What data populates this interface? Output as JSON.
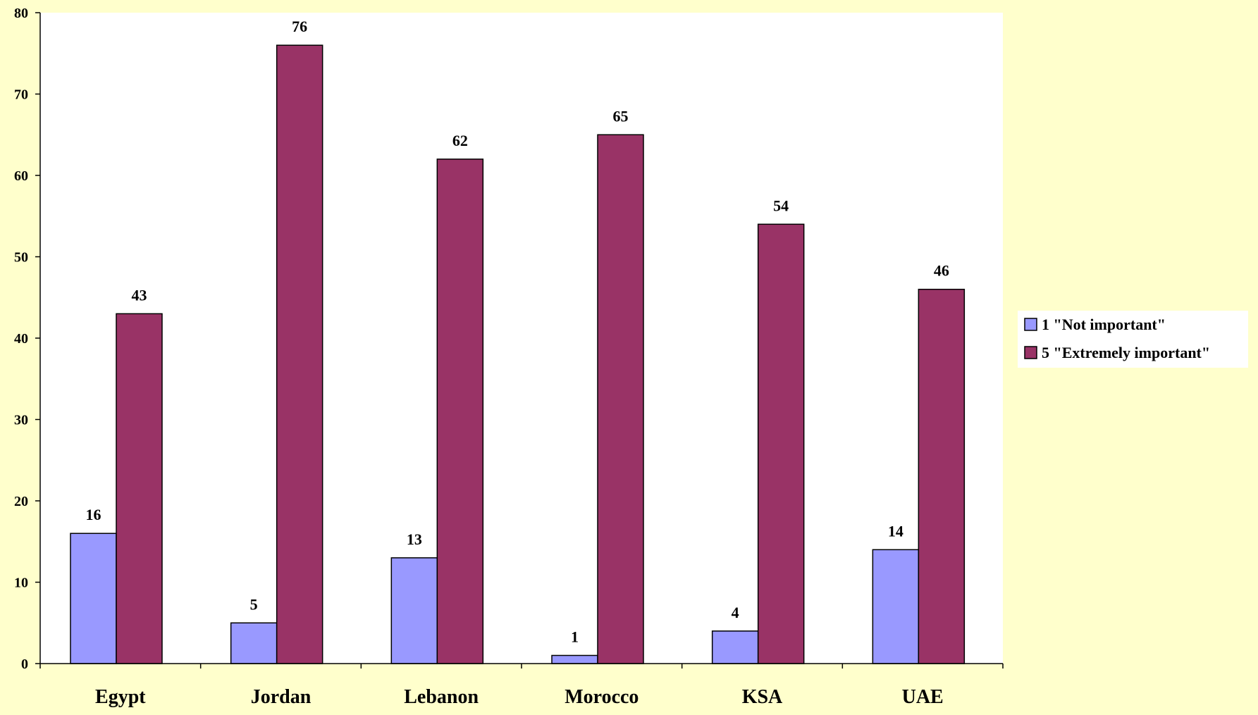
{
  "chart_data": {
    "type": "bar",
    "title": "",
    "xlabel": "",
    "ylabel": "",
    "categories": [
      "Egypt",
      "Jordan",
      "Lebanon",
      "Morocco",
      "KSA",
      "UAE"
    ],
    "series": [
      {
        "name": "1 \"Not important\"",
        "values": [
          16,
          5,
          13,
          1,
          4,
          14
        ],
        "color": "#9999FF"
      },
      {
        "name": "5 \"Extremely important\"",
        "values": [
          43,
          76,
          62,
          65,
          54,
          46
        ],
        "color": "#993366"
      }
    ],
    "ylim": [
      0,
      80
    ],
    "yticks": [
      0,
      10,
      20,
      30,
      40,
      50,
      60,
      70,
      80
    ],
    "grid": false,
    "legend_position": "right",
    "data_labels": true,
    "colors": {
      "page_background": "#FFFFCC",
      "plot_background": "#FFFFFF"
    }
  }
}
